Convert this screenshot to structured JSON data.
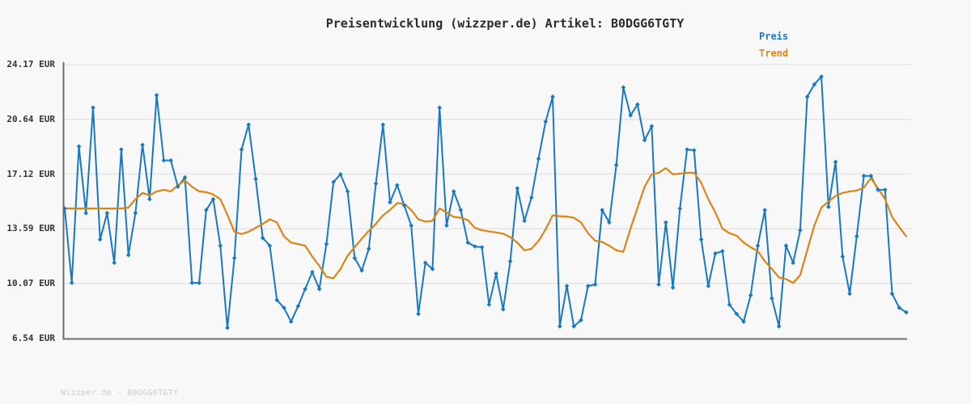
{
  "header": {
    "title": "Preisentwicklung (wizzper.de) Artikel: B0DGG6TGTY"
  },
  "legend": [
    {
      "label": "Preis",
      "color": "#1878c2"
    },
    {
      "label": "Trend",
      "color": "#db8418"
    }
  ],
  "footer": {
    "text": "Wizzper.de - B0DGG6TGTY"
  },
  "colors": {
    "background": "#f8f8f8",
    "gridline": "#e4e4e4",
    "axis_spine": "#6e6e6e",
    "title_text": "#2b2b2b",
    "tick_text": "#333333",
    "watermark_text": "#cccccc"
  },
  "chart_data": {
    "type": "line",
    "title": "Preisentwicklung (wizzper.de) Artikel: B0DGG6TGTY",
    "xlabel": "",
    "ylabel": "",
    "x_axis_labels": "none shown",
    "grid": "horizontal",
    "legend_position": "top-right",
    "ylim": [
      6.54,
      24.17
    ],
    "y_tick_values": [
      24.17,
      20.64,
      17.12,
      13.59,
      10.07,
      6.54
    ],
    "y_tick_labels": [
      "24.17 EUR",
      "20.64 EUR",
      "17.12 EUR",
      "13.59 EUR",
      "10.07 EUR",
      "6.54 EUR"
    ],
    "series": [
      {
        "name": "Preis",
        "color": "#1878c2",
        "marker": "diamond",
        "line_width": 2,
        "values": [
          14.9,
          10.1,
          18.9,
          14.6,
          21.4,
          12.9,
          14.6,
          11.4,
          18.7,
          11.9,
          14.6,
          19.0,
          15.5,
          22.2,
          18.0,
          18.0,
          16.3,
          16.9,
          10.1,
          10.1,
          14.8,
          15.5,
          12.5,
          7.2,
          11.7,
          18.7,
          20.3,
          16.8,
          13.0,
          12.5,
          9.0,
          8.5,
          7.6,
          8.6,
          9.7,
          10.8,
          9.7,
          12.6,
          16.6,
          17.1,
          16.0,
          11.7,
          10.9,
          12.3,
          16.5,
          20.3,
          15.3,
          16.4,
          15.1,
          13.8,
          8.1,
          11.4,
          11.0,
          21.4,
          13.8,
          16.0,
          14.8,
          12.7,
          12.45,
          12.4,
          8.7,
          10.7,
          8.4,
          11.5,
          16.2,
          14.1,
          15.6,
          18.1,
          20.5,
          22.1,
          7.3,
          9.9,
          7.3,
          7.7,
          9.9,
          10.0,
          14.8,
          14.0,
          17.7,
          22.7,
          20.9,
          21.6,
          19.3,
          20.2,
          10.0,
          14.0,
          9.8,
          14.9,
          18.7,
          18.65,
          12.9,
          9.9,
          12.0,
          12.15,
          8.7,
          8.1,
          7.6,
          9.3,
          12.5,
          14.8,
          9.1,
          7.3,
          12.5,
          11.4,
          13.5,
          22.1,
          22.9,
          23.4,
          15.0,
          17.9,
          11.8,
          9.4,
          13.1,
          17.0,
          17.0,
          16.1,
          16.1,
          9.4,
          8.5,
          8.2
        ]
      },
      {
        "name": "Trend",
        "color": "#db8418",
        "marker": "none",
        "line_width": 2.2,
        "values": [
          14.9,
          14.9,
          14.9,
          14.9,
          14.9,
          14.9,
          14.9,
          14.9,
          14.9,
          14.95,
          15.5,
          15.9,
          15.75,
          16.0,
          16.1,
          16.0,
          16.4,
          16.7,
          16.3,
          16.0,
          15.95,
          15.8,
          15.5,
          14.5,
          13.4,
          13.25,
          13.4,
          13.65,
          13.9,
          14.2,
          14.0,
          13.1,
          12.7,
          12.6,
          12.5,
          11.8,
          11.2,
          10.5,
          10.4,
          11.0,
          11.85,
          12.4,
          12.95,
          13.45,
          13.9,
          14.45,
          14.8,
          15.25,
          15.2,
          14.8,
          14.2,
          14.05,
          14.1,
          14.9,
          14.65,
          14.35,
          14.3,
          14.15,
          13.65,
          13.5,
          13.42,
          13.35,
          13.27,
          13.05,
          12.7,
          12.2,
          12.3,
          12.8,
          13.55,
          14.45,
          14.4,
          14.38,
          14.3,
          14.0,
          13.3,
          12.82,
          12.74,
          12.5,
          12.2,
          12.1,
          13.6,
          14.95,
          16.3,
          17.1,
          17.2,
          17.5,
          17.1,
          17.15,
          17.2,
          17.2,
          16.55,
          15.5,
          14.65,
          13.6,
          13.3,
          13.15,
          12.7,
          12.4,
          12.15,
          11.5,
          11.0,
          10.45,
          10.35,
          10.1,
          10.6,
          12.2,
          13.8,
          14.95,
          15.35,
          15.7,
          15.9,
          16.0,
          16.05,
          16.25,
          16.85,
          16.2,
          15.5,
          14.35,
          13.7,
          13.1
        ]
      }
    ]
  }
}
